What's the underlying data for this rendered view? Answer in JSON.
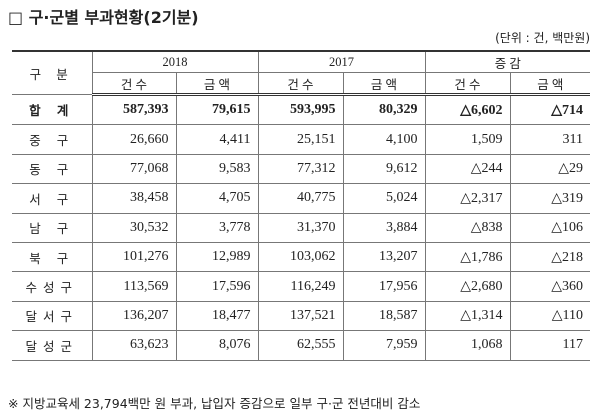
{
  "header": {
    "title": "□ 구·군별 부과현황(2기분)",
    "unit": "(단위 : 건, 백만원)"
  },
  "table": {
    "corner": "구 분",
    "groups": [
      "2018",
      "2017",
      "증 감"
    ],
    "subheaders": [
      "건 수",
      "금 액",
      "건 수",
      "금 액",
      "건 수",
      "금 액"
    ],
    "rows": [
      [
        "합 계",
        "587,393",
        "79,615",
        "593,995",
        "80,329",
        "△6,602",
        "△714"
      ],
      [
        "중 구",
        "26,660",
        "4,411",
        "25,151",
        "4,100",
        "1,509",
        "311"
      ],
      [
        "동 구",
        "77,068",
        "9,583",
        "77,312",
        "9,612",
        "△244",
        "△29"
      ],
      [
        "서 구",
        "38,458",
        "4,705",
        "40,775",
        "5,024",
        "△2,317",
        "△319"
      ],
      [
        "남 구",
        "30,532",
        "3,778",
        "31,370",
        "3,884",
        "△838",
        "△106"
      ],
      [
        "북 구",
        "101,276",
        "12,989",
        "103,062",
        "13,207",
        "△1,786",
        "△218"
      ],
      [
        "수성구",
        "113,569",
        "17,596",
        "116,249",
        "17,956",
        "△2,680",
        "△360"
      ],
      [
        "달서구",
        "136,207",
        "18,477",
        "137,521",
        "18,587",
        "△1,314",
        "△110"
      ],
      [
        "달성군",
        "63,623",
        "8,076",
        "62,555",
        "7,959",
        "1,068",
        "117"
      ]
    ]
  },
  "footnote": "※ 지방교육세 23,794백만 원 부과, 납입자 증감으로 일부 구·군 전년대비 감소"
}
